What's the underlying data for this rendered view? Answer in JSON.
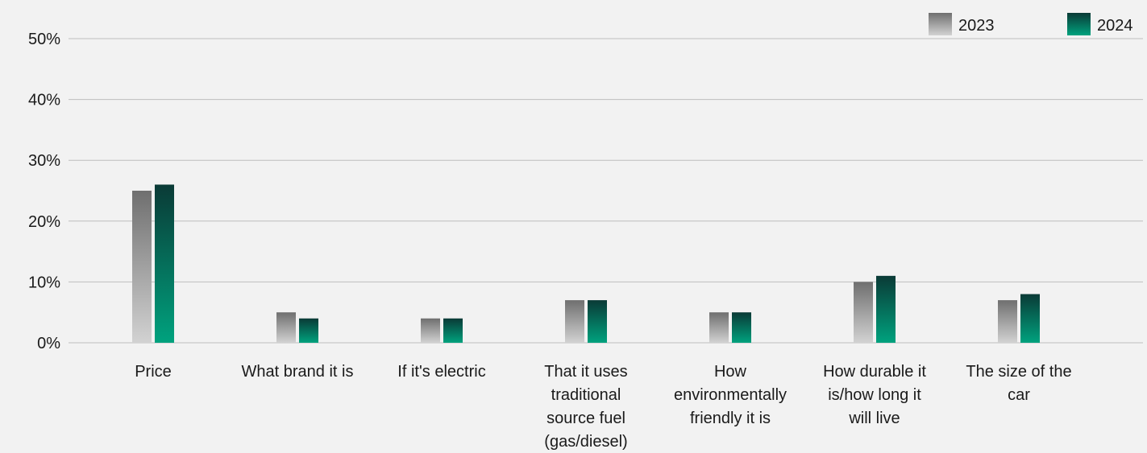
{
  "chart_data": {
    "type": "bar",
    "categories": [
      [
        "Price"
      ],
      [
        "What brand it is"
      ],
      [
        "If it's electric"
      ],
      [
        "That it uses",
        "traditional",
        "source fuel",
        "(gas/diesel)"
      ],
      [
        "How",
        "environmentally",
        "friendly it is"
      ],
      [
        "How durable it",
        "is/how long it",
        "will live"
      ],
      [
        "The size of the",
        "car"
      ]
    ],
    "series": [
      {
        "name": "2023",
        "values": [
          25,
          5,
          4,
          7,
          5,
          10,
          7
        ]
      },
      {
        "name": "2024",
        "values": [
          26,
          4,
          4,
          7,
          5,
          11,
          8
        ]
      }
    ],
    "ylim": [
      0,
      50
    ],
    "yticks": [
      0,
      10,
      20,
      30,
      40,
      50
    ],
    "ytick_format": "percent",
    "grid": true,
    "legend_position": "top-right",
    "colors": {
      "2023_top": "#6f6f6f",
      "2023_bottom": "#d2d2d2",
      "2024_top": "#0a3a36",
      "2024_bottom": "#00a27e",
      "grid": "#bdbdbd",
      "background": "#f2f2f2"
    }
  }
}
